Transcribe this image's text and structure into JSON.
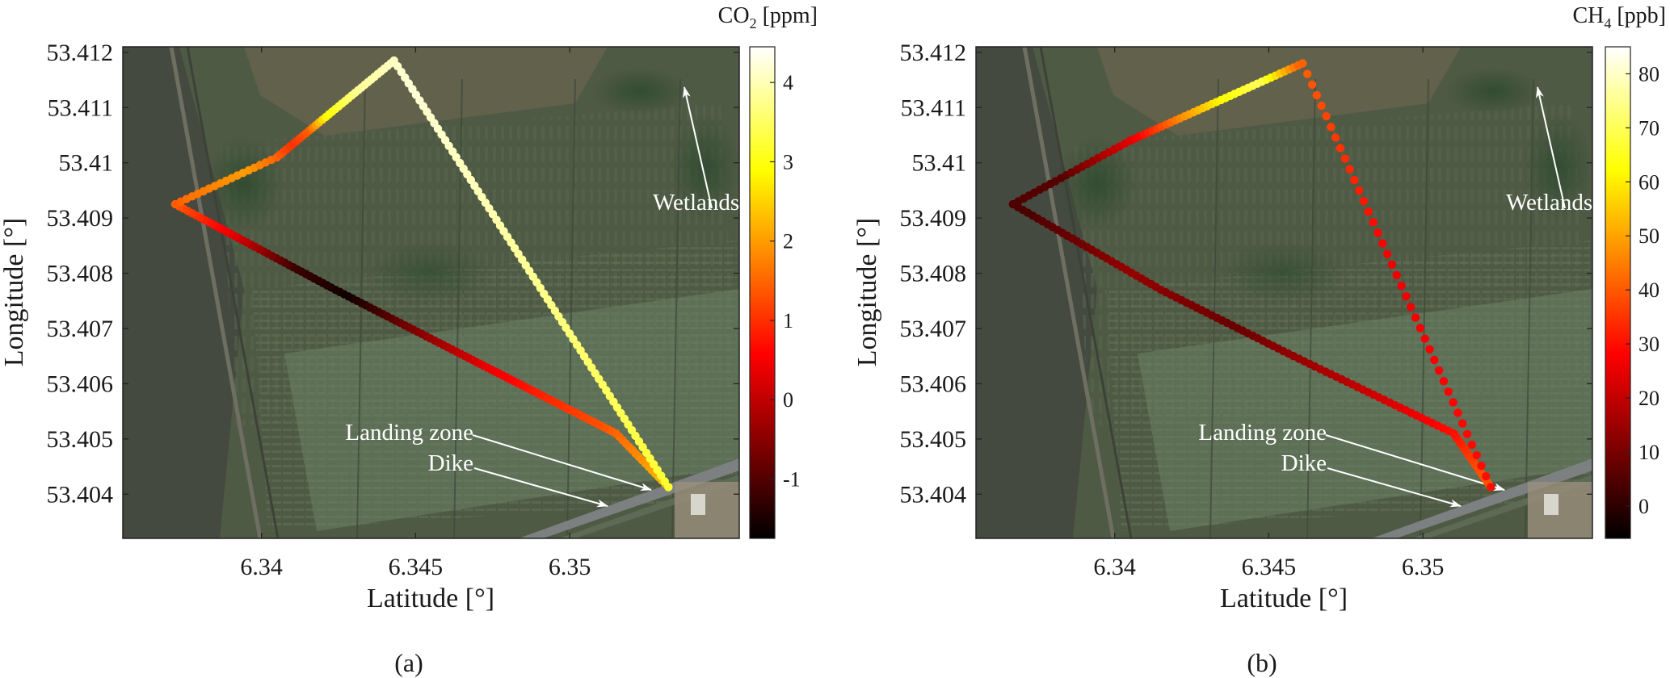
{
  "figure": {
    "panels": [
      {
        "caption": "(a)",
        "colorbar_label_main": "CO",
        "colorbar_label_sub": "2",
        "colorbar_label_unit": " [ppm]"
      },
      {
        "caption": "(b)",
        "colorbar_label_main": "CH",
        "colorbar_label_sub": "4",
        "colorbar_label_unit": " [ppb]"
      }
    ],
    "annotations": {
      "wetlands": "Wetlands",
      "landing_zone": "Landing zone",
      "dike": "Dike"
    }
  },
  "chart_data": [
    {
      "type": "scatter",
      "xlabel": "Latitude [°]",
      "ylabel": "Longitude [°]",
      "xlim": [
        6.3355,
        6.3555
      ],
      "ylim": [
        53.4032,
        53.4121
      ],
      "xticks": [
        6.34,
        6.345,
        6.35
      ],
      "xtick_labels": [
        "6.34",
        "6.345",
        "6.35"
      ],
      "yticks": [
        53.404,
        53.405,
        53.406,
        53.407,
        53.408,
        53.409,
        53.41,
        53.411,
        53.412
      ],
      "ytick_labels": [
        "53.404",
        "53.405",
        "53.406",
        "53.407",
        "53.408",
        "53.409",
        "53.41",
        "53.411",
        "53.412"
      ],
      "colorbar": {
        "label": "CO2 [ppm]",
        "range": [
          -1.75,
          4.45
        ],
        "ticks": [
          -1,
          0,
          1,
          2,
          3,
          4
        ],
        "tick_labels": [
          "-1",
          "0",
          "1",
          "2",
          "3",
          "4"
        ],
        "colormap": "hot"
      },
      "flight_path": {
        "vertices": [
          {
            "x": 6.3532,
            "y": 53.40413
          },
          {
            "x": 6.3515,
            "y": 53.4051
          },
          {
            "x": 6.3466,
            "y": 53.4065
          },
          {
            "x": 6.3424,
            "y": 53.4077
          },
          {
            "x": 6.3372,
            "y": 53.40925
          },
          {
            "x": 6.3405,
            "y": 53.4101
          },
          {
            "x": 6.3443,
            "y": 53.41185
          },
          {
            "x": 6.3532,
            "y": 53.40413
          }
        ],
        "segment_point_counts": [
          16,
          40,
          30,
          38,
          18,
          36,
          75
        ],
        "value_profile": {
          "arc_length_fraction": [
            0.0,
            0.04,
            0.08,
            0.14,
            0.2,
            0.27,
            0.33,
            0.38,
            0.44,
            0.5,
            0.54,
            0.58,
            0.6,
            0.62,
            0.66,
            0.72,
            0.8,
            0.9,
            1.0
          ],
          "value": [
            2.4,
            1.8,
            1.3,
            0.9,
            0.4,
            -0.6,
            -1.6,
            -1.2,
            0.4,
            1.6,
            2.0,
            1.0,
            1.4,
            2.8,
            3.8,
            4.2,
            4.0,
            3.6,
            3.2
          ]
        }
      }
    },
    {
      "type": "scatter",
      "xlabel": "Latitude [°]",
      "ylabel": "Longitude [°]",
      "xlim": [
        6.3355,
        6.3555
      ],
      "ylim": [
        53.4032,
        53.4121
      ],
      "xticks": [
        6.34,
        6.345,
        6.35
      ],
      "xtick_labels": [
        "6.34",
        "6.345",
        "6.35"
      ],
      "yticks": [
        53.404,
        53.405,
        53.406,
        53.407,
        53.408,
        53.409,
        53.41,
        53.411,
        53.412
      ],
      "ytick_labels": [
        "53.404",
        "53.405",
        "53.406",
        "53.407",
        "53.408",
        "53.409",
        "53.41",
        "53.411",
        "53.412"
      ],
      "colorbar": {
        "label": "CH4 [ppb]",
        "range": [
          -6,
          85
        ],
        "ticks": [
          0,
          10,
          20,
          30,
          40,
          50,
          60,
          70,
          80
        ],
        "tick_labels": [
          "0",
          "10",
          "20",
          "30",
          "40",
          "50",
          "60",
          "70",
          "80"
        ],
        "colormap": "hot"
      },
      "flight_path": {
        "vertices": [
          {
            "x": 6.3522,
            "y": 53.40413
          },
          {
            "x": 6.351,
            "y": 53.4051
          },
          {
            "x": 6.3458,
            "y": 53.4065
          },
          {
            "x": 6.3415,
            "y": 53.4077
          },
          {
            "x": 6.3367,
            "y": 53.40925
          },
          {
            "x": 6.3405,
            "y": 53.4104
          },
          {
            "x": 6.3461,
            "y": 53.4118
          },
          {
            "x": 6.3522,
            "y": 53.40413
          }
        ],
        "segment_point_counts": [
          20,
          30,
          26,
          30,
          22,
          38,
          40
        ],
        "value_profile": {
          "arc_length_fraction": [
            0.0,
            0.04,
            0.1,
            0.2,
            0.3,
            0.4,
            0.5,
            0.56,
            0.62,
            0.68,
            0.72,
            0.76,
            0.8,
            0.9,
            1.0
          ],
          "value": [
            40,
            38,
            30,
            18,
            8,
            14,
            4,
            6,
            24,
            48,
            62,
            70,
            42,
            26,
            30
          ]
        }
      }
    }
  ]
}
